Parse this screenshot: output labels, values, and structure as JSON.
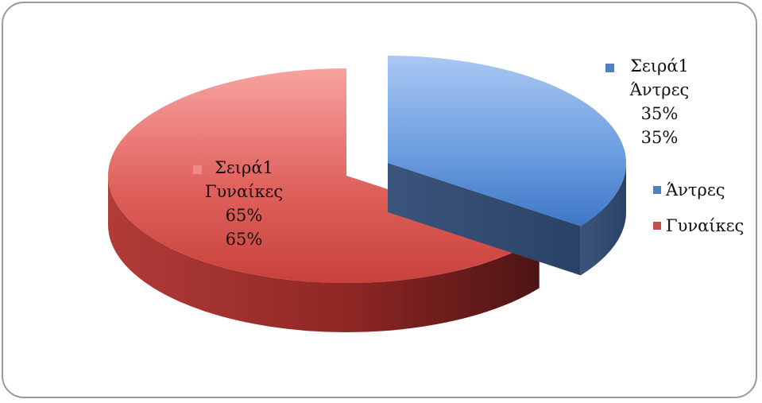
{
  "chart_data": {
    "type": "pie",
    "style": "3d-exploded",
    "categories": [
      "Άντρες",
      "Γυναίκες"
    ],
    "series": [
      {
        "name": "Σειρά1",
        "values": [
          35,
          65
        ]
      }
    ],
    "data_labels": [
      {
        "series": "Σειρά1",
        "category": "Άντρες",
        "value": "35%",
        "percent": "35%"
      },
      {
        "series": "Σειρά1",
        "category": "Γυναίκες",
        "value": "65%",
        "percent": "65%"
      }
    ],
    "legend": {
      "position": "right",
      "entries": [
        "Άντρες",
        "Γυναίκες"
      ]
    },
    "colors": {
      "Άντρες": "#4f81bd",
      "Γυναίκες": "#c0504d"
    },
    "grid": false
  }
}
